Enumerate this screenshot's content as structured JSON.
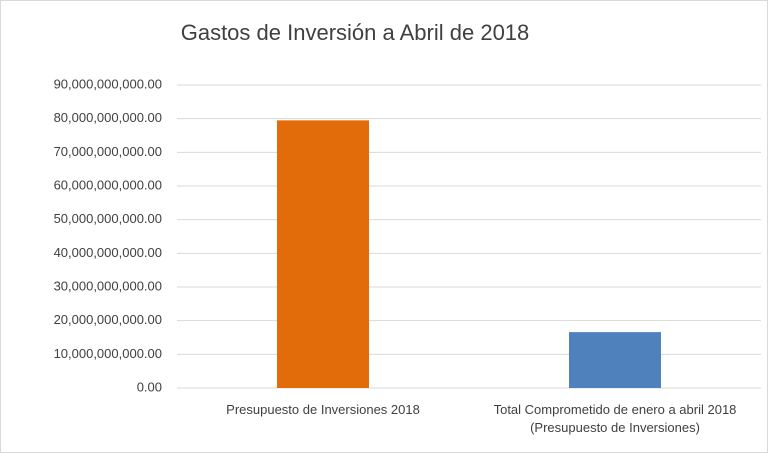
{
  "chart_data": {
    "type": "bar",
    "title": "Gastos de Inversión a Abril de 2018",
    "categories": [
      "Presupuesto de Inversiones 2018",
      "Total Comprometido de enero a abril 2018 (Presupuesto de Inversiones)"
    ],
    "values": [
      79500000000,
      16600000000
    ],
    "colors": [
      "#e36c0a",
      "#4f81bd"
    ],
    "ylim": [
      0,
      90000000000
    ],
    "yticks": [
      {
        "value": 0,
        "label": "0.00"
      },
      {
        "value": 10000000000,
        "label": "10,000,000,000.00"
      },
      {
        "value": 20000000000,
        "label": "20,000,000,000.00"
      },
      {
        "value": 30000000000,
        "label": "30,000,000,000.00"
      },
      {
        "value": 40000000000,
        "label": "40,000,000,000.00"
      },
      {
        "value": 50000000000,
        "label": "50,000,000,000.00"
      },
      {
        "value": 60000000000,
        "label": "60,000,000,000.00"
      },
      {
        "value": 70000000000,
        "label": "70,000,000,000.00"
      },
      {
        "value": 80000000000,
        "label": "80,000,000,000.00"
      },
      {
        "value": 90000000000,
        "label": "90,000,000,000.00"
      }
    ],
    "grid": true
  }
}
